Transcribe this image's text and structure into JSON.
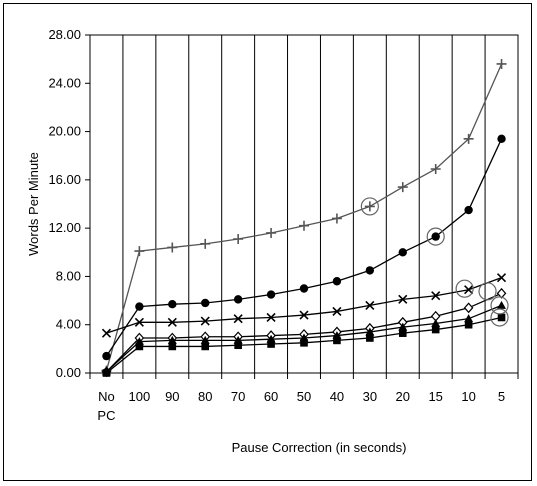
{
  "chart_data": {
    "type": "line",
    "title": "",
    "xlabel": "Pause Correction (in seconds)",
    "ylabel": "Words Per Minute",
    "categories": [
      [
        "No",
        "PC"
      ],
      [
        "100"
      ],
      [
        "90"
      ],
      [
        "80"
      ],
      [
        "70"
      ],
      [
        "60"
      ],
      [
        "50"
      ],
      [
        "40"
      ],
      [
        "30"
      ],
      [
        "20"
      ],
      [
        "15"
      ],
      [
        "10"
      ],
      [
        "5"
      ]
    ],
    "ylim": [
      0,
      28
    ],
    "yticks": [
      "0.00",
      "4.00",
      "8.00",
      "12.00",
      "16.00",
      "20.00",
      "24.00",
      "28.00"
    ],
    "grid": "vertical",
    "legend": "none",
    "series": [
      {
        "marker": "plus",
        "color": "#555555",
        "values": [
          0.2,
          10.1,
          10.4,
          10.7,
          11.1,
          11.6,
          12.2,
          12.8,
          13.8,
          15.4,
          16.9,
          19.4,
          25.6
        ],
        "circled_index": 8
      },
      {
        "marker": "circle",
        "color": "#000000",
        "values": [
          1.4,
          5.5,
          5.7,
          5.8,
          6.1,
          6.5,
          7.0,
          7.6,
          8.5,
          10.0,
          11.3,
          13.5,
          19.4
        ],
        "circled_index": 10
      },
      {
        "marker": "x",
        "color": "#000000",
        "values": [
          3.3,
          4.2,
          4.2,
          4.3,
          4.5,
          4.6,
          4.8,
          5.1,
          5.6,
          6.1,
          6.4,
          6.9,
          7.9
        ],
        "circled_index": 11
      },
      {
        "marker": "diamond",
        "color": "#000000",
        "values": [
          0.1,
          2.9,
          2.9,
          3.0,
          3.0,
          3.1,
          3.2,
          3.4,
          3.7,
          4.2,
          4.7,
          5.4,
          6.6
        ],
        "circled_index": 12
      },
      {
        "marker": "triangle",
        "color": "#000000",
        "values": [
          0.1,
          2.6,
          2.7,
          2.7,
          2.7,
          2.8,
          2.9,
          3.1,
          3.4,
          3.8,
          4.1,
          4.5,
          5.6
        ],
        "circled_index": 12
      },
      {
        "marker": "square",
        "color": "#000000",
        "values": [
          0.0,
          2.2,
          2.2,
          2.2,
          2.3,
          2.4,
          2.5,
          2.7,
          2.9,
          3.3,
          3.6,
          4.0,
          4.6
        ],
        "circled_index": 12
      }
    ]
  }
}
